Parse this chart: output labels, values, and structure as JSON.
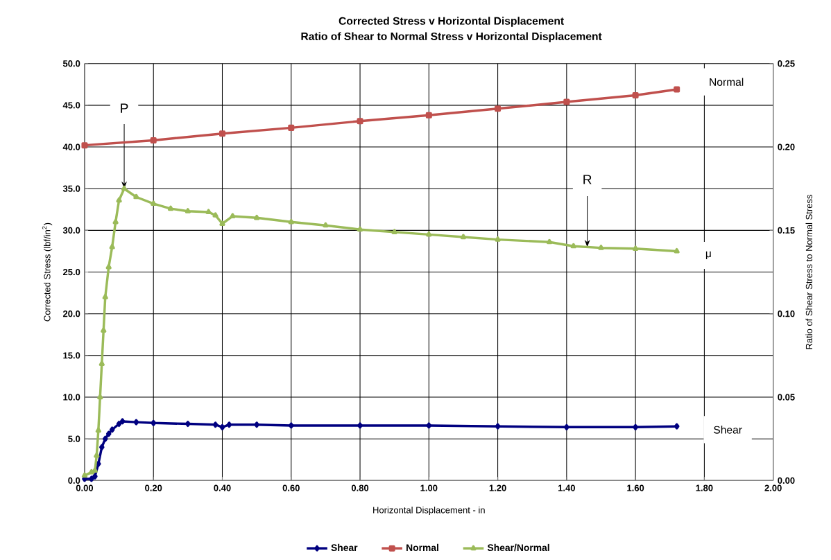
{
  "chart_data": {
    "type": "line",
    "title": "Corrected Stress v Horizontal Displacement",
    "subtitle": "Ratio of Shear to Normal Stress v Horizontal Displacement",
    "xlabel": "Horizontal Displacement - in",
    "ylabel": "Corrected Stress (lbf/in$^{2}$)",
    "y2label": "Ratio of Shear Stress to Normal  Stress",
    "xlim": [
      0,
      2
    ],
    "ylim": [
      0,
      50
    ],
    "y2lim": [
      0,
      0.25
    ],
    "xticks": [
      {
        "value": 0,
        "label": "0.00"
      },
      {
        "value": 0.2,
        "label": "0.20"
      },
      {
        "value": 0.4,
        "label": "0.40"
      },
      {
        "value": 0.6,
        "label": "0.60"
      },
      {
        "value": 0.8,
        "label": "0.80"
      },
      {
        "value": 1.0,
        "label": "1.00"
      },
      {
        "value": 1.2,
        "label": "1.20"
      },
      {
        "value": 1.4,
        "label": "1.40"
      },
      {
        "value": 1.6,
        "label": "1.60"
      },
      {
        "value": 1.8,
        "label": "1.80"
      },
      {
        "value": 2.0,
        "label": "2.00"
      }
    ],
    "yticks": [
      {
        "value": 0,
        "label": "0.0"
      },
      {
        "value": 5,
        "label": "5.0"
      },
      {
        "value": 10,
        "label": "10.0"
      },
      {
        "value": 15,
        "label": "15.0"
      },
      {
        "value": 20,
        "label": "20.0"
      },
      {
        "value": 25,
        "label": "25.0"
      },
      {
        "value": 30,
        "label": "30.0"
      },
      {
        "value": 35,
        "label": "35.0"
      },
      {
        "value": 40,
        "label": "40.0"
      },
      {
        "value": 45,
        "label": "45.0"
      },
      {
        "value": 50,
        "label": "50.0"
      }
    ],
    "y2ticks": [
      {
        "value": 0,
        "label": "0.00"
      },
      0.05,
      {
        "value": 0.1,
        "label": "0.10"
      },
      0.15,
      {
        "value": 0.2,
        "label": "0.20"
      },
      0.25
    ],
    "grid": true,
    "legend": "bottom",
    "series": [
      {
        "name": "Shear",
        "color": "#000080",
        "marker": "diamond",
        "axis": "y",
        "x": [
          0,
          0.02,
          0.03,
          0.04,
          0.05,
          0.06,
          0.07,
          0.08,
          0.1,
          0.11,
          0.15,
          0.2,
          0.3,
          0.38,
          0.4,
          0.42,
          0.5,
          0.6,
          0.8,
          1.0,
          1.2,
          1.4,
          1.6,
          1.72
        ],
        "values": [
          0.2,
          0.2,
          0.5,
          2.0,
          4.0,
          5.0,
          5.6,
          6.1,
          6.8,
          7.1,
          7.0,
          6.9,
          6.8,
          6.7,
          6.4,
          6.7,
          6.7,
          6.6,
          6.6,
          6.6,
          6.5,
          6.4,
          6.4,
          6.5
        ]
      },
      {
        "name": "Normal",
        "color": "#c0504d",
        "marker": "square",
        "axis": "y",
        "x": [
          0,
          0.2,
          0.4,
          0.6,
          0.8,
          1.0,
          1.2,
          1.4,
          1.6,
          1.72
        ],
        "values": [
          40.2,
          40.8,
          41.6,
          42.3,
          43.1,
          43.8,
          44.6,
          45.4,
          46.2,
          46.9
        ]
      },
      {
        "name": "Shear/Normal",
        "color": "#9bbb59",
        "marker": "triangle",
        "axis": "y2",
        "x": [
          0,
          0.02,
          0.03,
          0.035,
          0.04,
          0.045,
          0.05,
          0.055,
          0.06,
          0.07,
          0.08,
          0.09,
          0.1,
          0.115,
          0.15,
          0.2,
          0.25,
          0.3,
          0.36,
          0.38,
          0.4,
          0.43,
          0.5,
          0.6,
          0.7,
          0.8,
          0.9,
          1.0,
          1.1,
          1.2,
          1.35,
          1.42,
          1.5,
          1.6,
          1.72
        ],
        "values": [
          0.003,
          0.005,
          0.006,
          0.015,
          0.03,
          0.05,
          0.07,
          0.09,
          0.11,
          0.128,
          0.14,
          0.155,
          0.168,
          0.175,
          0.17,
          0.166,
          0.163,
          0.1615,
          0.161,
          0.159,
          0.154,
          0.1585,
          0.1575,
          0.155,
          0.153,
          0.1505,
          0.149,
          0.1475,
          0.146,
          0.1445,
          0.143,
          0.1405,
          0.1395,
          0.139,
          0.1375
        ]
      }
    ],
    "annotations": [
      {
        "text": "P",
        "x": 0.115,
        "y": 35
      },
      {
        "text": "R",
        "x": 1.46,
        "y": 28.0
      },
      "Normal",
      "μ",
      "Shear"
    ]
  }
}
